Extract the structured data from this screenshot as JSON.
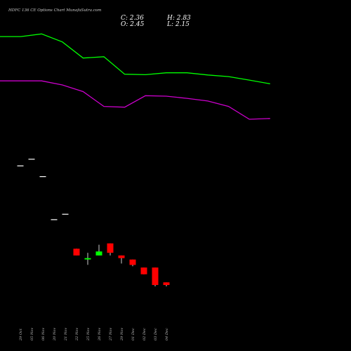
{
  "chart_data": {
    "type": "candlestick",
    "title": "HDFC 136  CE Options  Chart MunafaSutra.com",
    "ohlc_readout": {
      "close": "C: 2.36",
      "open": "O: 2.45",
      "high": "H: 2.83",
      "low": "L: 2.15"
    },
    "dates": [
      "29 Oct",
      "05 Nov",
      "06 Nov",
      "20 Nov",
      "21 Nov",
      "22 Nov",
      "25 Nov",
      "26 Nov",
      "27 Nov",
      "29 Nov",
      "01 Dec",
      "02 Dec",
      "03 Dec",
      "04 Dec"
    ],
    "candles": [
      {
        "open": 7.6,
        "high": 7.6,
        "low": 7.6,
        "close": 7.6
      },
      {
        "open": 7.85,
        "high": 7.85,
        "low": 7.85,
        "close": 7.85
      },
      {
        "open": 7.2,
        "high": 7.2,
        "low": 7.2,
        "close": 7.2
      },
      {
        "open": 5.6,
        "high": 5.6,
        "low": 5.6,
        "close": 5.6
      },
      {
        "open": 5.8,
        "high": 5.8,
        "low": 5.8,
        "close": 5.8
      },
      {
        "open": 4.5,
        "high": 4.5,
        "low": 4.25,
        "close": 4.25
      },
      {
        "open": 4.1,
        "high": 4.35,
        "low": 3.9,
        "close": 4.15
      },
      {
        "open": 4.25,
        "high": 4.65,
        "low": 4.25,
        "close": 4.4
      },
      {
        "open": 4.7,
        "high": 4.7,
        "low": 4.25,
        "close": 4.35
      },
      {
        "open": 4.25,
        "high": 4.25,
        "low": 3.95,
        "close": 4.15
      },
      {
        "open": 4.1,
        "high": 4.1,
        "low": 3.85,
        "close": 3.9
      },
      {
        "open": 3.8,
        "high": 3.8,
        "low": 3.55,
        "close": 3.55
      },
      {
        "open": 3.8,
        "high": 3.8,
        "low": 3.1,
        "close": 3.15
      },
      {
        "open": 3.25,
        "high": 3.25,
        "low": 3.1,
        "close": 3.15
      }
    ],
    "series": [
      {
        "color": "#00ff00",
        "values": [
          12.4,
          12.4,
          12.5,
          12.2,
          11.6,
          11.65,
          11.0,
          10.98,
          11.05,
          11.05,
          10.97,
          10.91,
          10.78,
          10.64
        ]
      },
      {
        "color": "#cc00cc",
        "values": [
          10.75,
          10.75,
          10.75,
          10.6,
          10.35,
          9.8,
          9.77,
          10.2,
          10.18,
          10.1,
          10.0,
          9.8,
          9.32,
          9.35
        ]
      }
    ],
    "y_range": [
      2.0,
      13.5
    ],
    "up_color": "#00ff00",
    "down_color": "#ff0000",
    "grid": false,
    "legend": "none"
  }
}
